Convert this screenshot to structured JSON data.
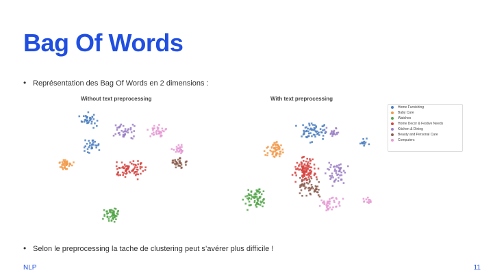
{
  "slide": {
    "title": "Bag Of Words",
    "bullet1": "Représentation des Bag Of Words en 2 dimensions :",
    "bullet2": "Selon le preprocessing la tache de clustering peut s’avérer plus difficile !",
    "footer_left": "NLP",
    "page_number": "11"
  },
  "plots": {
    "left_title": "Without text preprocessing",
    "right_title": "With text preprocessing"
  },
  "legend": {
    "items": [
      {
        "label": "Home Furnishing",
        "color": "#4c7fbf"
      },
      {
        "label": "Baby Care",
        "color": "#f29a4a"
      },
      {
        "label": "Watches",
        "color": "#55a64b"
      },
      {
        "label": "Home Decor & Festive Needs",
        "color": "#d64541"
      },
      {
        "label": "Kitchen & Dining",
        "color": "#9b7fc4"
      },
      {
        "label": "Beauty and Personal Care",
        "color": "#8c5e50"
      },
      {
        "label": "Computers",
        "color": "#e59ad3"
      }
    ]
  }
}
